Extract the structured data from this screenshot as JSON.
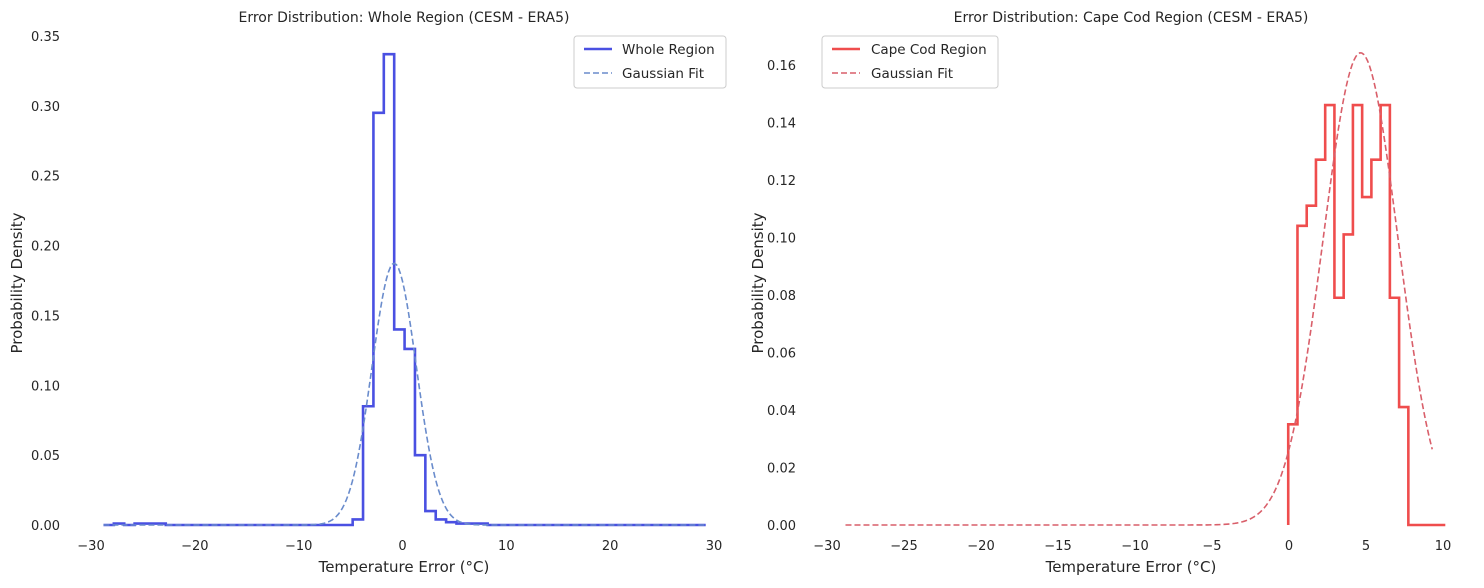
{
  "chart_data": [
    {
      "type": "histogram",
      "title": "Error Distribution: Whole Region (CESM - ERA5)",
      "xlabel": "Temperature Error (°C)",
      "ylabel": "Probability Density",
      "xlim": [
        -30,
        30
      ],
      "ylim": [
        0,
        0.35
      ],
      "xticks": [
        -30,
        -20,
        -10,
        0,
        10,
        20,
        30
      ],
      "xtick_labels": [
        "−30",
        "−20",
        "−10",
        "0",
        "10",
        "20",
        "30"
      ],
      "yticks": [
        0,
        0.05,
        0.1,
        0.15,
        0.2,
        0.25,
        0.3,
        0.35
      ],
      "ytick_labels": [
        "0.00",
        "0.05",
        "0.10",
        "0.15",
        "0.20",
        "0.25",
        "0.30",
        "0.35"
      ],
      "grid": false,
      "legend_position": "top-right",
      "series": [
        {
          "name": "Whole Region",
          "kind": "step",
          "color": "#4a50e2",
          "edges": [
            -28.8,
            -27.8,
            -26.8,
            -25.8,
            -24.8,
            -23.8,
            -22.8,
            -21.8,
            -20.8,
            -19.8,
            -18.8,
            -17.8,
            -16.8,
            -15.8,
            -14.8,
            -13.8,
            -12.8,
            -11.8,
            -10.8,
            -9.8,
            -8.8,
            -7.8,
            -6.8,
            -5.8,
            -4.8,
            -3.8,
            -2.8,
            -1.8,
            -0.8,
            0.2,
            1.2,
            2.2,
            3.2,
            4.2,
            5.2,
            6.2,
            7.2,
            8.2,
            9.2,
            10.2,
            11.2,
            12.2,
            13.2,
            14.2,
            15.2,
            16.2,
            17.2,
            18.2,
            19.2,
            20.2,
            21.2,
            22.2,
            23.2,
            24.2,
            25.2,
            26.2,
            27.2,
            28.2,
            29.2
          ],
          "values": [
            0,
            0.001,
            0,
            0.001,
            0.001,
            0.001,
            0,
            0,
            0,
            0,
            0,
            0,
            0,
            0,
            0,
            0,
            0,
            0,
            0,
            0,
            0,
            0,
            0,
            0,
            0.004,
            0.085,
            0.295,
            0.337,
            0.14,
            0.126,
            0.05,
            0.01,
            0.004,
            0.002,
            0.001,
            0.001,
            0.001,
            0,
            0,
            0,
            0,
            0,
            0,
            0,
            0,
            0,
            0,
            0,
            0,
            0,
            0,
            0,
            0,
            0,
            0,
            0,
            0,
            0
          ]
        },
        {
          "name": "Gaussian Fit",
          "kind": "gaussian",
          "color": "#6a8ccc",
          "dashed": true,
          "mean": -0.8,
          "sigma": 2.13,
          "x_range": [
            -28.8,
            29.2
          ]
        }
      ]
    },
    {
      "type": "histogram",
      "title": "Error Distribution: Cape Cod Region (CESM - ERA5)",
      "xlabel": "Temperature Error (°C)",
      "ylabel": "Probability Density",
      "xlim": [
        -30,
        10
      ],
      "ylim": [
        0,
        0.17
      ],
      "xticks": [
        -30,
        -25,
        -20,
        -15,
        -10,
        -5,
        0,
        5,
        10
      ],
      "xtick_labels": [
        "−30",
        "−25",
        "−20",
        "−15",
        "−10",
        "−5",
        "0",
        "5",
        "10"
      ],
      "yticks": [
        0,
        0.02,
        0.04,
        0.06,
        0.08,
        0.1,
        0.12,
        0.14,
        0.16
      ],
      "ytick_labels": [
        "0.00",
        "0.02",
        "0.04",
        "0.06",
        "0.08",
        "0.10",
        "0.12",
        "0.14",
        "0.16"
      ],
      "grid": false,
      "legend_position": "top-left",
      "series": [
        {
          "name": "Cape Cod Region",
          "kind": "step",
          "color": "#ef4d4d",
          "edges": [
            -0.05,
            0.55,
            1.15,
            1.75,
            2.35,
            2.95,
            3.55,
            4.15,
            4.75,
            5.35,
            5.95,
            6.55,
            7.15,
            7.75,
            8.35,
            8.95,
            9.55,
            10.15
          ],
          "values": [
            0.035,
            0.104,
            0.111,
            0.127,
            0.146,
            0.079,
            0.101,
            0.146,
            0.114,
            0.127,
            0.146,
            0.079,
            0.041,
            0.0,
            0.0,
            0.0,
            0.0
          ]
        },
        {
          "name": "Gaussian Fit",
          "kind": "gaussian",
          "color": "#d95f6a",
          "dashed": true,
          "mean": 4.65,
          "sigma": 2.43,
          "x_range": [
            -28.8,
            9.3
          ]
        }
      ]
    }
  ]
}
